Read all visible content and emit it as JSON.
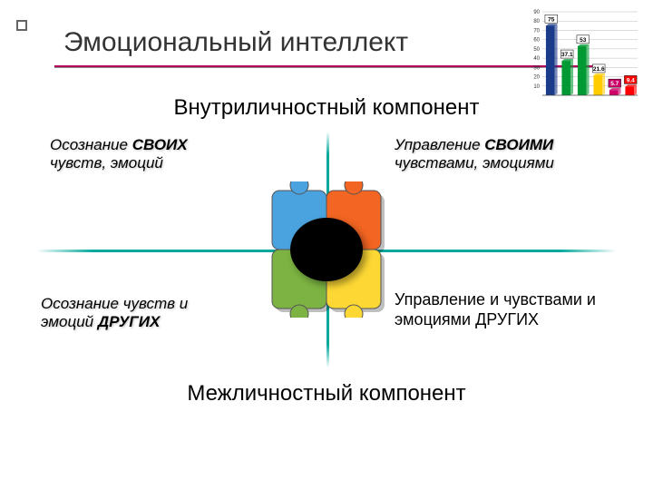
{
  "title": "Эмоциональный интеллект",
  "subtitle_top": "Внутриличностный  компонент",
  "subtitle_bottom": "Межличностный  компонент",
  "quadrants": {
    "tl_line1": "Осознание ",
    "tl_bold": "СВОИХ",
    "tl_line2": "чувств, эмоций",
    "tr_line1": "Управление ",
    "tr_bold": "СВОИМИ",
    "tr_line2": "чувствами, эмоциями",
    "bl_line1": "Осознание чувств и",
    "bl_line2a": "эмоций ",
    "bl_bold": "ДРУГИХ",
    "br_line1": "Управление и чувствами и",
    "br_line2": "эмоциями ДРУГИХ"
  },
  "mini_chart": {
    "bars": [
      {
        "value": 75,
        "color": "#1a3a8a",
        "label_bg": "#ffffff"
      },
      {
        "value": 37.1,
        "color": "#009933",
        "label_bg": "#ffffff"
      },
      {
        "value": 53,
        "color": "#009933",
        "label_bg": "#ffffff"
      },
      {
        "value": 21.6,
        "color": "#ffcc00",
        "label_bg": "#ffffff"
      },
      {
        "value": 5.7,
        "color": "#cc0066",
        "label_bg": "#cc0066"
      },
      {
        "value": 9.4,
        "color": "#ff0000",
        "label_bg": "#ff0000"
      }
    ],
    "max": 90,
    "grid_color": "#bbbbbb",
    "ticks": [
      10,
      20,
      30,
      40,
      50,
      60,
      70,
      80,
      90
    ]
  },
  "puzzle_colors": {
    "tl": "#4aa3df",
    "tr": "#f26522",
    "bl": "#7cb342",
    "br": "#fdd835"
  },
  "axis_color": "#00a79d",
  "title_line_color": "#b5005a"
}
